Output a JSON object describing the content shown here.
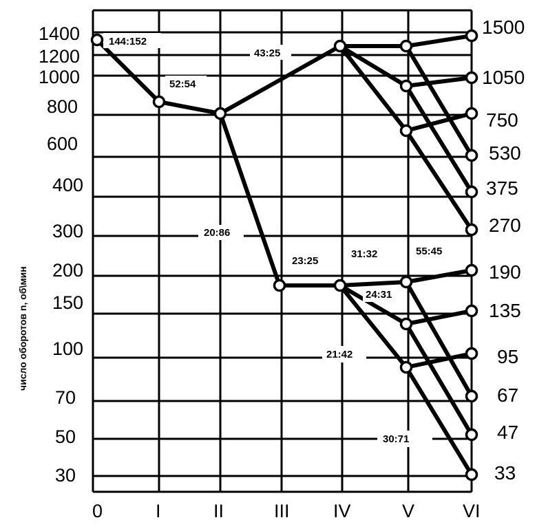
{
  "y_axis_label": "число оборотов   n,   об\\мин",
  "x_ticks": [
    "0",
    "I",
    "II",
    "III",
    "IV",
    "V",
    "VI"
  ],
  "left_ticks": [
    "1400",
    "1200",
    "1000",
    "800",
    "600",
    "400",
    "300",
    "200",
    "150",
    "100",
    "70",
    "50",
    "30"
  ],
  "right_ticks": [
    "1500",
    "1050",
    "750",
    "530",
    "375",
    "270",
    "190",
    "135",
    "95",
    "67",
    "47",
    "33"
  ],
  "ratios": [
    "144:152",
    "52:54",
    "43:25",
    "20:86",
    "23:25",
    "31:32",
    "55:45",
    "24:31",
    "21:42",
    "30:71"
  ],
  "nodes": [
    {
      "shaft": "0",
      "n": 1400
    },
    {
      "shaft": "I",
      "n": 800
    },
    {
      "shaft": "II",
      "n": 750
    },
    {
      "shaft": "III",
      "n": 170
    },
    {
      "shaft": "IV",
      "n": 1300
    },
    {
      "shaft": "IV",
      "n": 170
    },
    {
      "shaft": "V",
      "n": 1300
    },
    {
      "shaft": "V",
      "n": 930
    },
    {
      "shaft": "V",
      "n": 650
    },
    {
      "shaft": "V",
      "n": 180
    },
    {
      "shaft": "V",
      "n": 120
    },
    {
      "shaft": "V",
      "n": 85
    },
    {
      "shaft": "VI",
      "n": 1500
    },
    {
      "shaft": "VI",
      "n": 1050
    },
    {
      "shaft": "VI",
      "n": 750
    },
    {
      "shaft": "VI",
      "n": 530
    },
    {
      "shaft": "VI",
      "n": 375
    },
    {
      "shaft": "VI",
      "n": 270
    },
    {
      "shaft": "VI",
      "n": 190
    },
    {
      "shaft": "VI",
      "n": 135
    },
    {
      "shaft": "VI",
      "n": 95
    },
    {
      "shaft": "VI",
      "n": 67
    },
    {
      "shaft": "VI",
      "n": 47
    },
    {
      "shaft": "VI",
      "n": 33
    }
  ],
  "links": [
    {
      "from": [
        "0",
        1400
      ],
      "to": [
        "I",
        800
      ]
    },
    {
      "from": [
        "I",
        800
      ],
      "to": [
        "II",
        750
      ]
    },
    {
      "from": [
        "II",
        750
      ],
      "to": [
        "IV",
        1300
      ]
    },
    {
      "from": [
        "II",
        750
      ],
      "to": [
        "III",
        170
      ]
    },
    {
      "from": [
        "III",
        170
      ],
      "to": [
        "IV",
        170
      ]
    },
    {
      "from": [
        "IV",
        1300
      ],
      "to": [
        "V",
        1300
      ]
    },
    {
      "from": [
        "IV",
        1300
      ],
      "to": [
        "V",
        930
      ]
    },
    {
      "from": [
        "IV",
        1300
      ],
      "to": [
        "V",
        650
      ]
    },
    {
      "from": [
        "IV",
        170
      ],
      "to": [
        "V",
        180
      ]
    },
    {
      "from": [
        "IV",
        170
      ],
      "to": [
        "V",
        120
      ]
    },
    {
      "from": [
        "IV",
        170
      ],
      "to": [
        "V",
        85
      ]
    },
    {
      "from": [
        "V",
        1300
      ],
      "to": [
        "VI",
        1500
      ]
    },
    {
      "from": [
        "V",
        1300
      ],
      "to": [
        "VI",
        530
      ]
    },
    {
      "from": [
        "V",
        930
      ],
      "to": [
        "VI",
        1050
      ]
    },
    {
      "from": [
        "V",
        930
      ],
      "to": [
        "VI",
        375
      ]
    },
    {
      "from": [
        "V",
        650
      ],
      "to": [
        "VI",
        750
      ]
    },
    {
      "from": [
        "V",
        650
      ],
      "to": [
        "VI",
        270
      ]
    },
    {
      "from": [
        "V",
        180
      ],
      "to": [
        "VI",
        190
      ]
    },
    {
      "from": [
        "V",
        180
      ],
      "to": [
        "VI",
        67
      ]
    },
    {
      "from": [
        "V",
        120
      ],
      "to": [
        "VI",
        135
      ]
    },
    {
      "from": [
        "V",
        120
      ],
      "to": [
        "VI",
        47
      ]
    },
    {
      "from": [
        "V",
        85
      ],
      "to": [
        "VI",
        95
      ]
    },
    {
      "from": [
        "V",
        85
      ],
      "to": [
        "VI",
        33
      ]
    }
  ]
}
